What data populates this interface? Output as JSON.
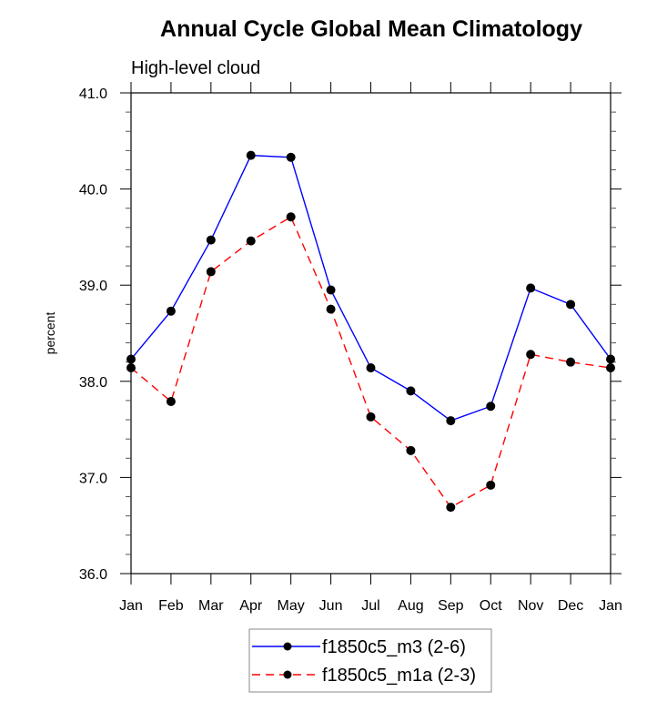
{
  "chart_data": {
    "type": "line",
    "title": "Annual Cycle Global Mean Climatology",
    "subtitle": "High-level cloud",
    "xlabel": "",
    "ylabel": "percent",
    "categories": [
      "Jan",
      "Feb",
      "Mar",
      "Apr",
      "May",
      "Jun",
      "Jul",
      "Aug",
      "Sep",
      "Oct",
      "Nov",
      "Dec",
      "Jan"
    ],
    "ylim": [
      36.0,
      41.0
    ],
    "yticks": [
      "36.0",
      "37.0",
      "38.0",
      "39.0",
      "40.0",
      "41.0"
    ],
    "y_minor_step": 0.2,
    "grid": false,
    "legend_position": "bottom-center",
    "series": [
      {
        "name": "f1850c5_m3 (2-6)",
        "color": "#0000ff",
        "dash": "solid",
        "marker": "filled-circle",
        "values": [
          38.23,
          38.73,
          39.47,
          40.35,
          40.33,
          38.95,
          38.14,
          37.9,
          37.59,
          37.74,
          38.97,
          38.8,
          38.23
        ]
      },
      {
        "name": "f1850c5_m1a (2-3)",
        "color": "#ff0000",
        "dash": "dashed",
        "marker": "filled-circle",
        "values": [
          38.14,
          37.79,
          39.14,
          39.46,
          39.71,
          38.75,
          37.63,
          37.28,
          36.69,
          36.92,
          38.28,
          38.2,
          38.14
        ]
      }
    ]
  }
}
